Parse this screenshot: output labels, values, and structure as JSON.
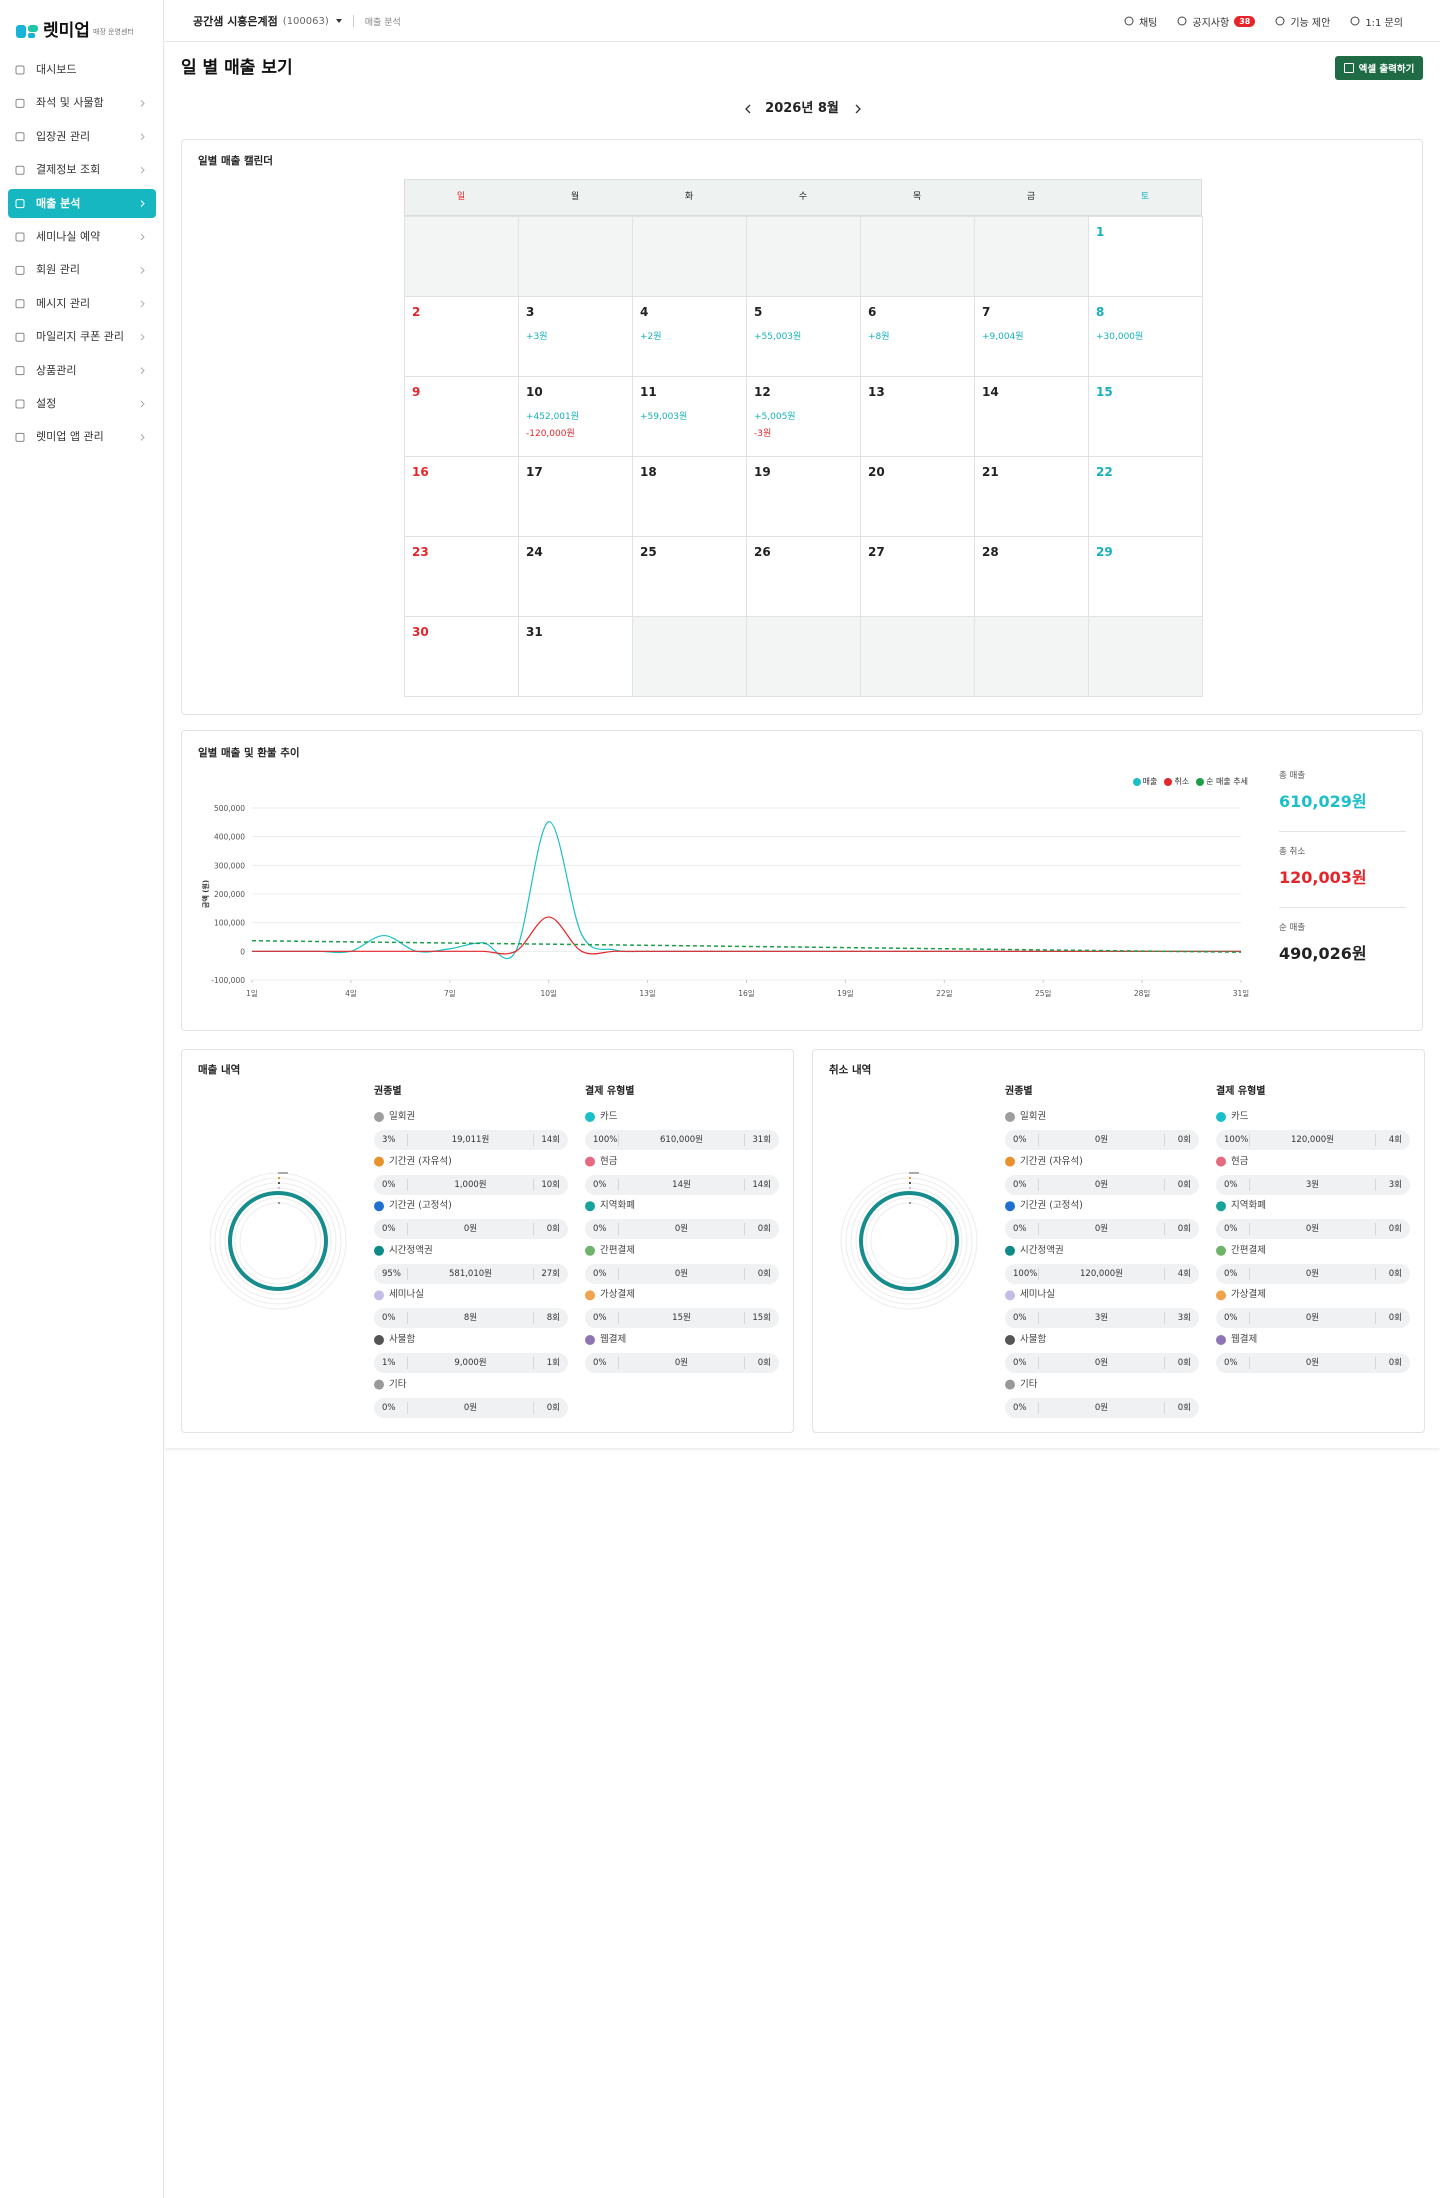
{
  "sidebar": {
    "logo": "렛미업",
    "logo_sub": "매장 운영센터",
    "menu": [
      "대시보드",
      "좌석 및 사물함",
      "입장권 관리",
      "결제정보 조회",
      "매출 분석",
      "세미나실 예약",
      "회원 관리",
      "메시지 관리",
      "마일리지 쿠폰 관리",
      "상품관리",
      "설정",
      "렛미업 앱 관리"
    ],
    "active": 4
  },
  "topbar": {
    "store": "공간샘 시흥은계점",
    "store_id": "(100063)",
    "breadcrumb": "매출 분석",
    "actions": [
      "채팅",
      "공지사항",
      "기능 제안",
      "1:1 문의"
    ],
    "notice_badge": 38
  },
  "page": {
    "title": "일 별 매출 보기",
    "excel_button": "엑셀 출력하기",
    "month": "2026년 8월"
  },
  "calendar": {
    "title": "일별 매출 캘린더",
    "weekdays": [
      "일",
      "월",
      "화",
      "수",
      "목",
      "금",
      "토"
    ],
    "weeks": [
      [
        null,
        null,
        null,
        null,
        null,
        null,
        {
          "day": 1
        }
      ],
      [
        {
          "day": 2
        },
        {
          "day": 3,
          "sales": "+3원"
        },
        {
          "day": 4,
          "sales": "+2원"
        },
        {
          "day": 5,
          "sales": "+55,003원"
        },
        {
          "day": 6,
          "sales": "+8원"
        },
        {
          "day": 7,
          "sales": "+9,004원"
        },
        {
          "day": 8,
          "sales": "+30,000원"
        }
      ],
      [
        {
          "day": 9
        },
        {
          "day": 10,
          "sales": "+452,001원",
          "cancel": "-120,000원"
        },
        {
          "day": 11,
          "sales": "+59,003원"
        },
        {
          "day": 12,
          "sales": "+5,005원",
          "cancel": "-3원"
        },
        {
          "day": 13
        },
        {
          "day": 14
        },
        {
          "day": 15
        }
      ],
      [
        {
          "day": 16
        },
        {
          "day": 17
        },
        {
          "day": 18
        },
        {
          "day": 19
        },
        {
          "day": 20
        },
        {
          "day": 21
        },
        {
          "day": 22
        }
      ],
      [
        {
          "day": 23
        },
        {
          "day": 24
        },
        {
          "day": 25
        },
        {
          "day": 26
        },
        {
          "day": 27
        },
        {
          "day": 28
        },
        {
          "day": 29
        }
      ],
      [
        {
          "day": 30
        },
        {
          "day": 31
        },
        null,
        null,
        null,
        null,
        null
      ]
    ]
  },
  "chart_data": {
    "type": "line",
    "title": "일별 매출 및 환불 추이",
    "y_label": "금액 (원)",
    "x": [
      1,
      2,
      3,
      4,
      5,
      6,
      7,
      8,
      9,
      10,
      11,
      12,
      13,
      14,
      15,
      16,
      17,
      18,
      19,
      20,
      21,
      22,
      23,
      24,
      25,
      26,
      27,
      28,
      29,
      30,
      31
    ],
    "xlim": [
      1,
      31
    ],
    "xticks": [
      {
        "value": 1,
        "label": "1일"
      },
      {
        "value": 4,
        "label": "4일"
      },
      {
        "value": 7,
        "label": "7일"
      },
      {
        "value": 10,
        "label": "10일"
      },
      {
        "value": 13,
        "label": "13일"
      },
      {
        "value": 16,
        "label": "16일"
      },
      {
        "value": 19,
        "label": "19일"
      },
      {
        "value": 22,
        "label": "22일"
      },
      {
        "value": 25,
        "label": "25일"
      },
      {
        "value": 28,
        "label": "28일"
      },
      {
        "value": 31,
        "label": "31일"
      }
    ],
    "ylim": [
      -100000,
      500000
    ],
    "yticks": [
      {
        "value": -100000,
        "label": "-100,000"
      },
      0,
      {
        "value": 100000,
        "label": "100,000"
      },
      {
        "value": 200000,
        "label": "200,000"
      },
      {
        "value": 300000,
        "label": "300,000"
      },
      {
        "value": 400000,
        "label": "400,000"
      },
      {
        "value": 500000,
        "label": "500,000"
      }
    ],
    "grid": true,
    "legend": "top-right",
    "series": [
      {
        "name": "매출",
        "color": "#1bbfc9",
        "values": [
          0,
          0,
          3,
          2,
          55003,
          8,
          9004,
          30000,
          0,
          452001,
          59003,
          5005,
          0,
          0,
          0,
          0,
          0,
          0,
          0,
          0,
          0,
          0,
          0,
          0,
          0,
          0,
          0,
          0,
          0,
          0,
          0
        ]
      },
      {
        "name": "취소",
        "color": "#e5252a",
        "values": [
          0,
          0,
          0,
          0,
          0,
          0,
          0,
          0,
          0,
          120000,
          0,
          3,
          0,
          0,
          0,
          0,
          0,
          0,
          0,
          0,
          0,
          0,
          0,
          0,
          0,
          0,
          0,
          0,
          0,
          0,
          0
        ]
      },
      {
        "name": "순 매출 추세",
        "color": "#1e9e4a",
        "dashed": true,
        "x": [
          1,
          31
        ],
        "values": [
          37000,
          -3000
        ]
      }
    ]
  },
  "summary": [
    {
      "label": "총 매출",
      "value": "610,029원",
      "color": "#1bbfc9"
    },
    {
      "label": "총 취소",
      "value": "120,003원",
      "color": "#e5252a"
    },
    {
      "label": "순 매출",
      "value": "490,026원",
      "color": "#222222"
    }
  ],
  "breakdown": [
    {
      "title": "매출 내역",
      "groups": [
        {
          "title": "권종별",
          "items": [
            {
              "name": "일회권",
              "color": "#9e9e9e",
              "percent": "3%",
              "amount": "19,011원",
              "count": "14회"
            },
            {
              "name": "기간권 (자유석)",
              "color": "#e8922e",
              "percent": "0%",
              "amount": "1,000원",
              "count": "10회"
            },
            {
              "name": "기간권 (고정석)",
              "color": "#1f6fd1",
              "percent": "0%",
              "amount": "0원",
              "count": "0회"
            },
            {
              "name": "시간정액권",
              "color": "#0e8a86",
              "percent": "95%",
              "amount": "581,010원",
              "count": "27회"
            },
            {
              "name": "세미나실",
              "color": "#c5bde8",
              "percent": "0%",
              "amount": "8원",
              "count": "8회"
            },
            {
              "name": "사물함",
              "color": "#555555",
              "percent": "1%",
              "amount": "9,000원",
              "count": "1회"
            },
            {
              "name": "기타",
              "color": "#999999",
              "percent": "0%",
              "amount": "0원",
              "count": "0회"
            }
          ]
        },
        {
          "title": "결제 유형별",
          "items": [
            {
              "name": "카드",
              "color": "#1bbfc9",
              "percent": "100%",
              "amount": "610,000원",
              "count": "31회"
            },
            {
              "name": "현금",
              "color": "#e56a7f",
              "percent": "0%",
              "amount": "14원",
              "count": "14회"
            },
            {
              "name": "지역화폐",
              "color": "#16a39a",
              "percent": "0%",
              "amount": "0원",
              "count": "0회"
            },
            {
              "name": "간편결제",
              "color": "#6fb26a",
              "percent": "0%",
              "amount": "0원",
              "count": "0회"
            },
            {
              "name": "가상결제",
              "color": "#f0a24c",
              "percent": "0%",
              "amount": "15원",
              "count": "15회"
            },
            {
              "name": "웹결제",
              "color": "#8e73b5",
              "percent": "0%",
              "amount": "0원",
              "count": "0회"
            }
          ]
        }
      ]
    },
    {
      "title": "취소 내역",
      "groups": [
        {
          "title": "권종별",
          "items": [
            {
              "name": "일회권",
              "color": "#9e9e9e",
              "percent": "0%",
              "amount": "0원",
              "count": "0회"
            },
            {
              "name": "기간권 (자유석)",
              "color": "#e8922e",
              "percent": "0%",
              "amount": "0원",
              "count": "0회"
            },
            {
              "name": "기간권 (고정석)",
              "color": "#1f6fd1",
              "percent": "0%",
              "amount": "0원",
              "count": "0회"
            },
            {
              "name": "시간정액권",
              "color": "#0e8a86",
              "percent": "100%",
              "amount": "120,000원",
              "count": "4회"
            },
            {
              "name": "세미나실",
              "color": "#c5bde8",
              "percent": "0%",
              "amount": "3원",
              "count": "3회"
            },
            {
              "name": "사물함",
              "color": "#555555",
              "percent": "0%",
              "amount": "0원",
              "count": "0회"
            },
            {
              "name": "기타",
              "color": "#999999",
              "percent": "0%",
              "amount": "0원",
              "count": "0회"
            }
          ]
        },
        {
          "title": "결제 유형별",
          "items": [
            {
              "name": "카드",
              "color": "#1bbfc9",
              "percent": "100%",
              "amount": "120,000원",
              "count": "4회"
            },
            {
              "name": "현금",
              "color": "#e56a7f",
              "percent": "0%",
              "amount": "3원",
              "count": "3회"
            },
            {
              "name": "지역화폐",
              "color": "#16a39a",
              "percent": "0%",
              "amount": "0원",
              "count": "0회"
            },
            {
              "name": "간편결제",
              "color": "#6fb26a",
              "percent": "0%",
              "amount": "0원",
              "count": "0회"
            },
            {
              "name": "가상결제",
              "color": "#f0a24c",
              "percent": "0%",
              "amount": "0원",
              "count": "0회"
            },
            {
              "name": "웹결제",
              "color": "#8e73b5",
              "percent": "0%",
              "amount": "0원",
              "count": "0회"
            }
          ]
        }
      ]
    }
  ]
}
